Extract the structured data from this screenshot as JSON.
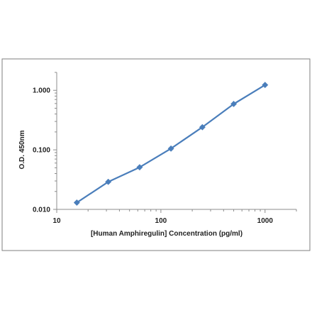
{
  "chart_data": {
    "type": "line",
    "title": "",
    "xlabel": "[Human Amphiregulin]  Concentration (pg/ml)",
    "ylabel": "O.D. 450nm",
    "x_scale": "log",
    "y_scale": "log",
    "xlim": [
      10,
      2000
    ],
    "ylim": [
      0.01,
      2.0
    ],
    "x_ticks": [
      "10",
      "100",
      "1000"
    ],
    "y_ticks": [
      "0.010",
      "0.100",
      "1.000"
    ],
    "grid": false,
    "legend": "none",
    "colors": {
      "series": "#4a7ebb",
      "axis": "#8c8c8c",
      "border": "#7f7f7f"
    },
    "series": [
      {
        "x": [
          15.6,
          31.25,
          62.5,
          125,
          250,
          500,
          1000
        ],
        "y": [
          0.013,
          0.029,
          0.051,
          0.105,
          0.24,
          0.59,
          1.23
        ]
      }
    ]
  }
}
